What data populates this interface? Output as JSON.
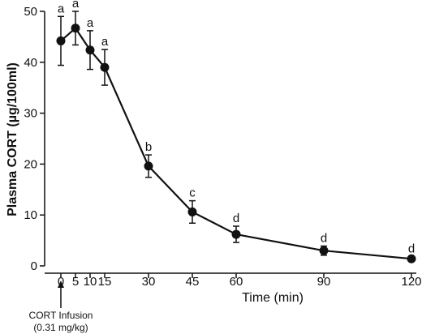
{
  "chart_data": {
    "type": "line",
    "xlabel": "Time (min)",
    "ylabel": "Plasma CORT (µg/100ml)",
    "xlim": [
      0,
      120
    ],
    "ylim": [
      0,
      50
    ],
    "x_ticks": [
      0,
      5,
      10,
      15,
      30,
      45,
      60,
      90,
      120
    ],
    "y_ticks": [
      0,
      10,
      20,
      30,
      40,
      50
    ],
    "grid": false,
    "series": [
      {
        "x": [
          0,
          5,
          10,
          15,
          30,
          45,
          60,
          90,
          120
        ],
        "y": [
          44.2,
          46.7,
          42.4,
          39.0,
          19.6,
          10.6,
          6.2,
          3.0,
          1.4
        ],
        "error": [
          4.8,
          3.3,
          3.8,
          3.5,
          2.2,
          2.2,
          1.6,
          0.9,
          0.4
        ],
        "labels": [
          "a",
          "a",
          "a",
          "a",
          "b",
          "c",
          "d",
          "d",
          "d"
        ]
      }
    ],
    "annotation": {
      "x": 0,
      "line1": "CORT Infusion",
      "line2": "(0.31 mg/kg)"
    }
  }
}
